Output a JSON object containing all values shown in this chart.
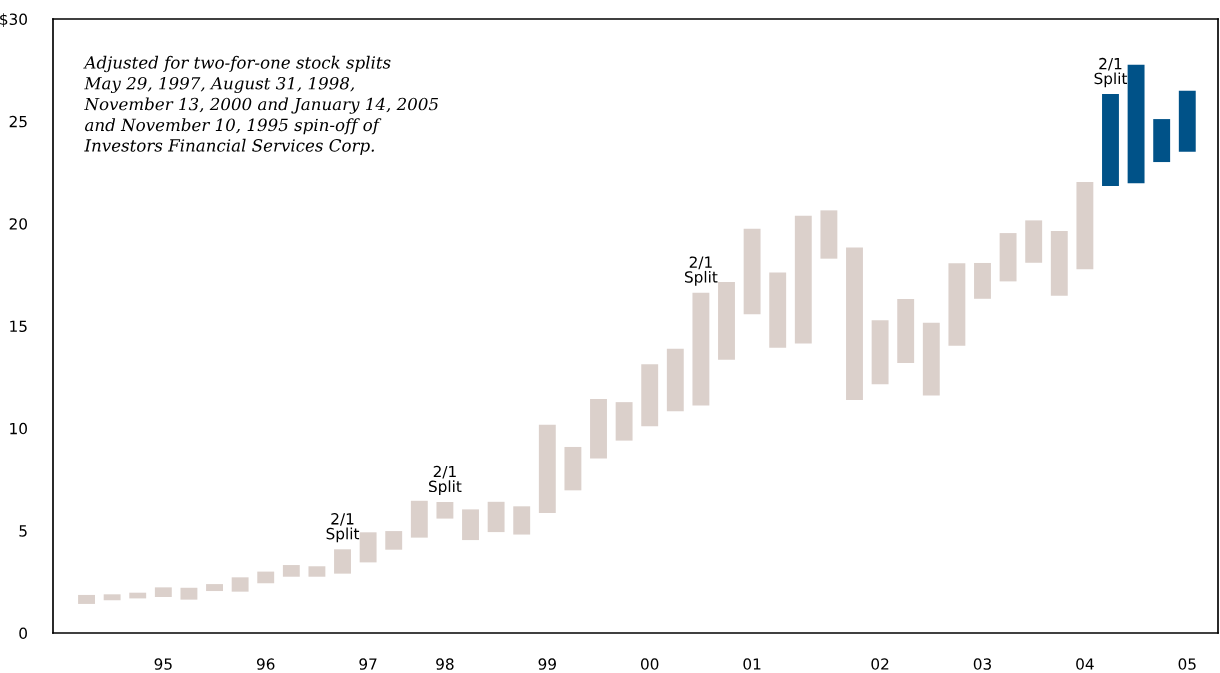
{
  "chart_data": {
    "type": "bar",
    "categories": [
      null,
      null,
      null,
      "95",
      null,
      null,
      null,
      "96",
      null,
      null,
      null,
      "97",
      null,
      null,
      "98",
      null,
      null,
      null,
      "99",
      null,
      null,
      null,
      "00",
      null,
      null,
      null,
      "01",
      null,
      null,
      null,
      null,
      "02",
      null,
      null,
      null,
      "03",
      null,
      null,
      null,
      "04",
      null,
      null,
      null,
      "05"
    ],
    "base": [
      1.42,
      1.6,
      1.69,
      1.76,
      1.63,
      2.05,
      2.02,
      2.43,
      2.75,
      2.75,
      2.9,
      3.45,
      4.07,
      4.66,
      5.59,
      4.54,
      4.93,
      4.81,
      5.86,
      6.97,
      8.53,
      9.4,
      10.1,
      10.83,
      11.11,
      13.35,
      15.58,
      13.94,
      14.15,
      18.29,
      11.38,
      12.16,
      13.19,
      11.61,
      14.04,
      16.33,
      17.18,
      18.09,
      16.48,
      17.77,
      21.84,
      21.97,
      23.01,
      23.51
    ],
    "values": [
      0.44,
      0.29,
      0.28,
      0.47,
      0.58,
      0.34,
      0.7,
      0.57,
      0.57,
      0.51,
      1.19,
      1.47,
      0.91,
      1.8,
      0.81,
      1.5,
      1.48,
      1.38,
      4.32,
      2.12,
      2.9,
      1.88,
      3.03,
      3.06,
      5.52,
      3.8,
      4.17,
      3.68,
      6.24,
      2.36,
      7.46,
      3.12,
      3.13,
      3.55,
      4.02,
      1.75,
      2.36,
      2.07,
      3.16,
      4.26,
      4.49,
      5.79,
      2.1,
      2.98
    ],
    "colors": [
      "#dbd0cb",
      "#dbd0cb",
      "#dbd0cb",
      "#dbd0cb",
      "#dbd0cb",
      "#dbd0cb",
      "#dbd0cb",
      "#dbd0cb",
      "#dbd0cb",
      "#dbd0cb",
      "#dbd0cb",
      "#dbd0cb",
      "#dbd0cb",
      "#dbd0cb",
      "#dbd0cb",
      "#dbd0cb",
      "#dbd0cb",
      "#dbd0cb",
      "#dbd0cb",
      "#dbd0cb",
      "#dbd0cb",
      "#dbd0cb",
      "#dbd0cb",
      "#dbd0cb",
      "#dbd0cb",
      "#dbd0cb",
      "#dbd0cb",
      "#dbd0cb",
      "#dbd0cb",
      "#dbd0cb",
      "#dbd0cb",
      "#dbd0cb",
      "#dbd0cb",
      "#dbd0cb",
      "#dbd0cb",
      "#dbd0cb",
      "#dbd0cb",
      "#dbd0cb",
      "#dbd0cb",
      "#dbd0cb",
      "#005288",
      "#005288",
      "#005288",
      "#005288"
    ],
    "ylim": [
      0,
      30
    ],
    "yticks": [
      0,
      5,
      10,
      15,
      20,
      25,
      {
        "value": 30,
        "label": "$30"
      }
    ],
    "grid": false,
    "annotations": [
      "Adjusted for two-for-one stock splits\nMay 29, 1997, August 31, 1998,\nNovember 13, 2000 and January 14, 2005\nand November 10, 1995 spin-off of\nInvestors Financial Services Corp.",
      {
        "text": "2/1\nSplit",
        "y": 4.09
      },
      {
        "text": "2/1\nSplit",
        "y": 6.4
      },
      {
        "text": "2/1\nSplit",
        "y": 16.63
      },
      {
        "text": "2/1\nSplit",
        "y": 26.33
      }
    ]
  }
}
